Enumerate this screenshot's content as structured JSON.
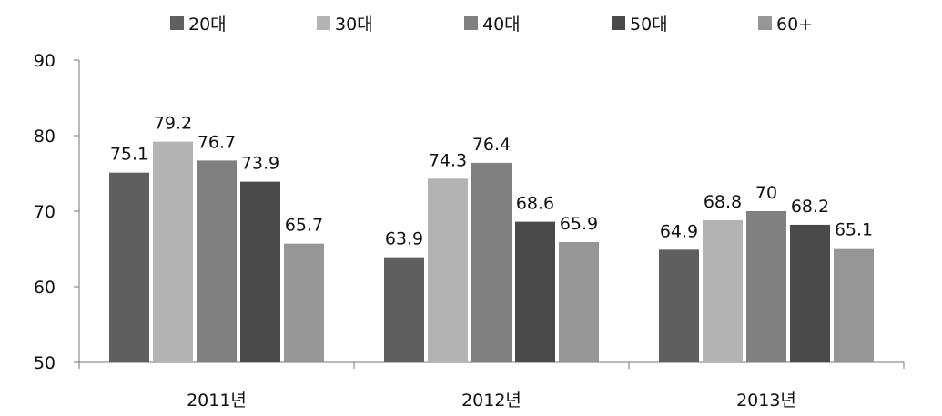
{
  "chart_data": {
    "type": "bar",
    "categories": [
      "2011년",
      "2012년",
      "2013년"
    ],
    "series": [
      {
        "name": "20대",
        "color": "#5f5f5f",
        "values": [
          75.1,
          63.9,
          64.9
        ]
      },
      {
        "name": "30대",
        "color": "#b3b3b3",
        "values": [
          79.2,
          74.3,
          68.8
        ]
      },
      {
        "name": "40대",
        "color": "#808080",
        "values": [
          76.7,
          76.4,
          70
        ]
      },
      {
        "name": "50대",
        "color": "#4a4a4a",
        "values": [
          73.9,
          68.6,
          68.2
        ]
      },
      {
        "name": "60+",
        "color": "#969696",
        "values": [
          65.7,
          65.9,
          65.1
        ]
      }
    ],
    "ylim": [
      50,
      90
    ],
    "yticks": [
      50,
      60,
      70,
      80,
      90
    ],
    "grid": false,
    "legend_position": "top-center",
    "data_labels": true,
    "xlabel": "",
    "ylabel": "",
    "title": ""
  }
}
